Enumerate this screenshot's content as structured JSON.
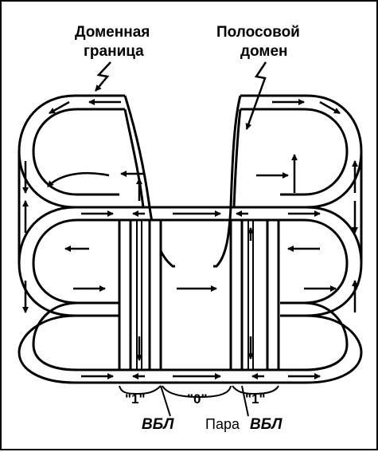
{
  "labels": {
    "domain_boundary_line1": "Доменная",
    "domain_boundary_line2": "граница",
    "stripe_domain_line1": "Полосовой",
    "stripe_domain_line2": "домен",
    "bit_one_left": "\"1\"",
    "bit_zero": "\"0\"",
    "bit_one_right": "\"1\"",
    "vbl": "ВБЛ",
    "pair_prefix": "Пара",
    "pair_vbl": "ВБЛ"
  },
  "colors": {
    "ink": "#000000",
    "paper": "#ffffff"
  }
}
